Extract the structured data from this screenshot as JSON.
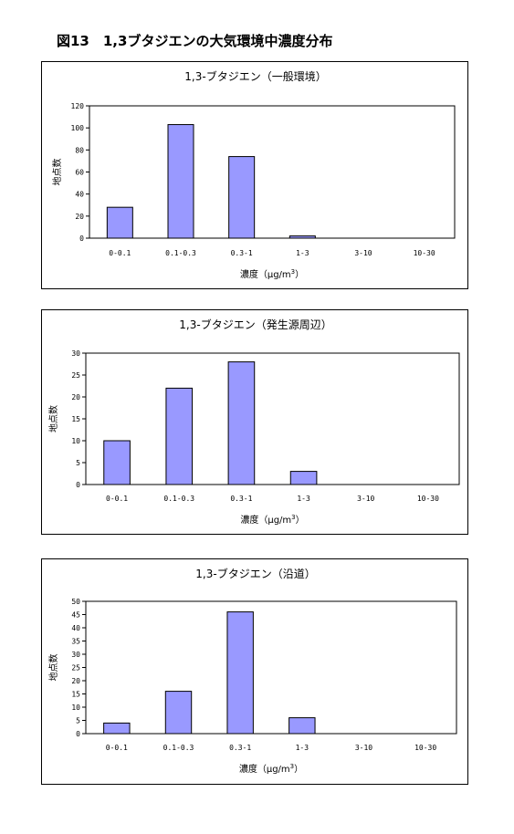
{
  "figure_title": "図13　1,3ブタジエンの大気環境中濃度分布",
  "chart_data": [
    {
      "type": "bar",
      "title": "1,3-ブタジエン（一般環境）",
      "categories": [
        "0-0.1",
        "0.1-0.3",
        "0.3-1",
        "1-3",
        "3-10",
        "10-30"
      ],
      "values": [
        28,
        103,
        74,
        2,
        0,
        0
      ],
      "xlabel": "濃度（μg/m3）",
      "ylabel": "地点数",
      "ylim": [
        0,
        120
      ],
      "yticks": [
        0,
        20,
        40,
        60,
        80,
        100,
        120
      ],
      "bar_color": "#9999ff",
      "grid": false,
      "legend": "none"
    },
    {
      "type": "bar",
      "title": "1,3-ブタジエン（発生源周辺）",
      "categories": [
        "0-0.1",
        "0.1-0.3",
        "0.3-1",
        "1-3",
        "3-10",
        "10-30"
      ],
      "values": [
        10,
        22,
        28,
        3,
        0,
        0
      ],
      "xlabel": "濃度（μg/m3）",
      "ylabel": "地点数",
      "ylim": [
        0,
        30
      ],
      "yticks": [
        0,
        5,
        10,
        15,
        20,
        25,
        30
      ],
      "bar_color": "#9999ff",
      "grid": false,
      "legend": "none"
    },
    {
      "type": "bar",
      "title": "1,3-ブタジエン（沿道）",
      "categories": [
        "0-0.1",
        "0.1-0.3",
        "0.3-1",
        "1-3",
        "3-10",
        "10-30"
      ],
      "values": [
        4,
        16,
        46,
        6,
        0,
        0
      ],
      "xlabel": "濃度（μg/m3）",
      "ylabel": "地点数",
      "ylim": [
        0,
        50
      ],
      "yticks": [
        0,
        5,
        10,
        15,
        20,
        25,
        30,
        35,
        40,
        45,
        50
      ],
      "bar_color": "#9999ff",
      "grid": false,
      "legend": "none"
    }
  ]
}
